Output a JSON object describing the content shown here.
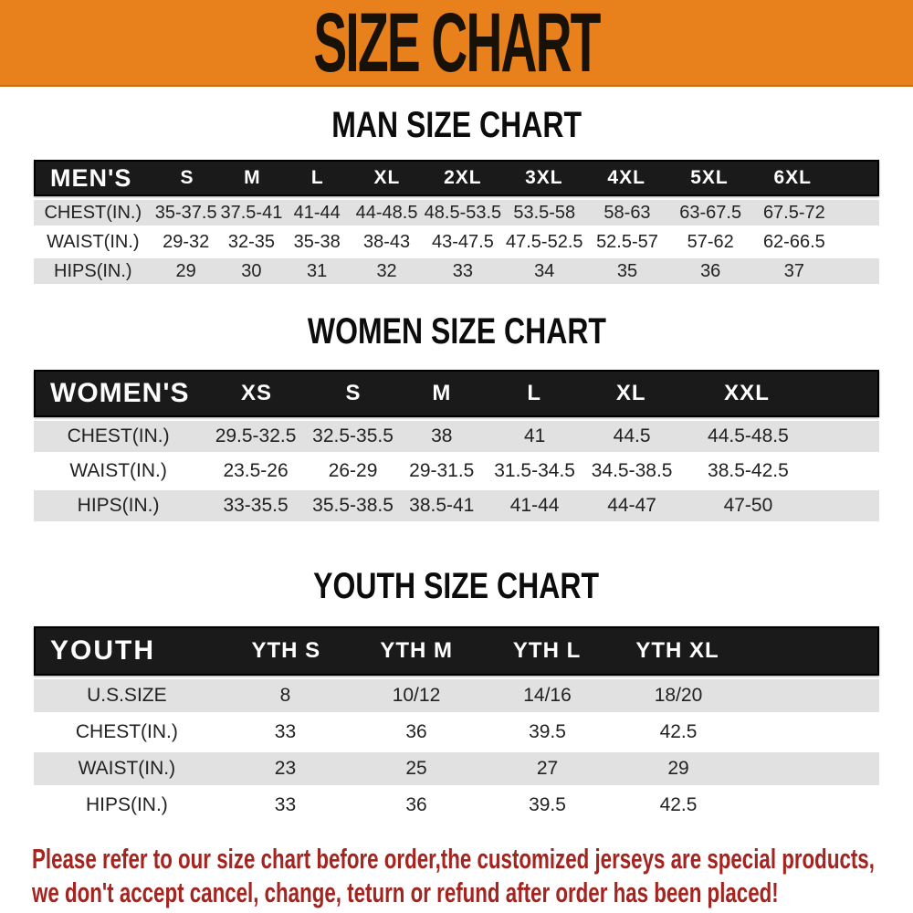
{
  "banner": {
    "title": "SIZE CHART"
  },
  "colors": {
    "banner_bg": "#E8811B",
    "header_bg": "#1A1A1A",
    "row_alt_bg": "#E1E1E1",
    "footer_text": "#A42420"
  },
  "chart_data": [
    {
      "type": "table",
      "title": "MAN SIZE CHART",
      "header_label": "MEN'S",
      "columns": [
        "S",
        "M",
        "L",
        "XL",
        "2XL",
        "3XL",
        "4XL",
        "5XL",
        "6XL"
      ],
      "rows": [
        {
          "label": "CHEST(IN.)",
          "values": [
            "35-37.5",
            "37.5-41",
            "41-44",
            "44-48.5",
            "48.5-53.5",
            "53.5-58",
            "58-63",
            "63-67.5",
            "67.5-72"
          ]
        },
        {
          "label": "WAIST(IN.)",
          "values": [
            "29-32",
            "32-35",
            "35-38",
            "38-43",
            "43-47.5",
            "47.5-52.5",
            "52.5-57",
            "57-62",
            "62-66.5"
          ]
        },
        {
          "label": "HIPS(IN.)",
          "values": [
            "29",
            "30",
            "31",
            "32",
            "33",
            "34",
            "35",
            "36",
            "37"
          ]
        }
      ]
    },
    {
      "type": "table",
      "title": "WOMEN SIZE CHART",
      "header_label": "WOMEN'S",
      "columns": [
        "XS",
        "S",
        "M",
        "L",
        "XL",
        "XXL"
      ],
      "rows": [
        {
          "label": "CHEST(IN.)",
          "values": [
            "29.5-32.5",
            "32.5-35.5",
            "38",
            "41",
            "44.5",
            "44.5-48.5"
          ]
        },
        {
          "label": "WAIST(IN.)",
          "values": [
            "23.5-26",
            "26-29",
            "29-31.5",
            "31.5-34.5",
            "34.5-38.5",
            "38.5-42.5"
          ]
        },
        {
          "label": "HIPS(IN.)",
          "values": [
            "33-35.5",
            "35.5-38.5",
            "38.5-41",
            "41-44",
            "44-47",
            "47-50"
          ]
        }
      ]
    },
    {
      "type": "table",
      "title": "YOUTH SIZE CHART",
      "header_label": "YOUTH",
      "columns": [
        "YTH S",
        "YTH M",
        "YTH L",
        "YTH XL"
      ],
      "rows": [
        {
          "label": "U.S.SIZE",
          "values": [
            "8",
            "10/12",
            "14/16",
            "18/20"
          ]
        },
        {
          "label": "CHEST(IN.)",
          "values": [
            "33",
            "36",
            "39.5",
            "42.5"
          ]
        },
        {
          "label": "WAIST(IN.)",
          "values": [
            "23",
            "25",
            "27",
            "29"
          ]
        },
        {
          "label": "HIPS(IN.)",
          "values": [
            "33",
            "36",
            "39.5",
            "42.5"
          ]
        }
      ]
    }
  ],
  "footer": {
    "line1": "Please refer to our size chart before order,the customized jerseys are special products,",
    "line2": "we don't accept cancel, change, teturn or refund after order has been placed!"
  }
}
